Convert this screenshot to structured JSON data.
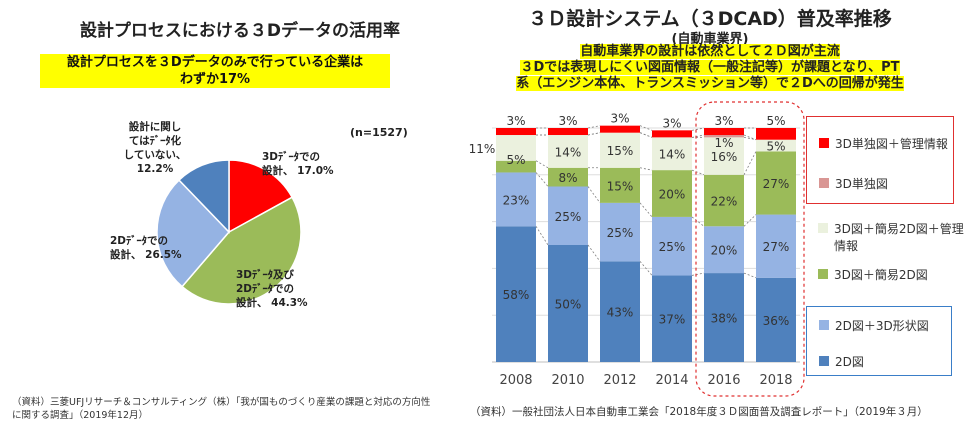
{
  "colors": {
    "d2": "#4f81bd",
    "d2shape": "#95b3e3",
    "d3simple": "#9bbb59",
    "d3simple_mgmt": "#ebf1de",
    "d3only": "#d99694",
    "d3only_mgmt": "#ff0000",
    "highlight": "#ffff00"
  },
  "left": {
    "title": "設計プロセスにおける３Dデータの活用率",
    "subtitle_line1": "設計プロセスを３Dデータのみで行っている企業は",
    "subtitle_line2": "わずか17%",
    "n_label": "(n=1527)",
    "source_line1": "（資料）三菱UFJリサーチ＆コンサルティング（株）「我が国ものづくり産業の課題と対応の方向性",
    "source_line2": "に関する調査」（2019年12月）"
  },
  "right": {
    "title": "３Ｄ設計システム（３DCAD）普及率推移",
    "subtitle0": "(自動車業界)",
    "line1": "自動車業界の設計は依然として２Ｄ図が主流",
    "line2": "３Dでは表現しにくい図面情報（一般注記等）が課題となり、PT",
    "line3": "系（エンジン本体、トランスミッション等）で２Dへの回帰が発生",
    "source": "（資料）一般社団法人日本自動車工業会「2018年度３Ｄ図面普及調査レポート」（2019年３月）"
  },
  "chart_data": [
    {
      "type": "pie",
      "title": "設計プロセスにおける３Dデータの活用率",
      "slices": [
        {
          "label_lines": [
            "3Dﾃﾞｰﾀでの",
            "設計、 17.0%"
          ],
          "value": 17.0,
          "color_key": "d3only_mgmt"
        },
        {
          "label_lines": [
            "3Dﾃﾞｰﾀ及び",
            "2Dﾃﾞｰﾀでの",
            "設計、 44.3%"
          ],
          "value": 44.3,
          "color_key": "d3simple"
        },
        {
          "label_lines": [
            "2Dﾃﾞｰﾀでの",
            "設計、 26.5%"
          ],
          "value": 26.5,
          "color_key": "d2shape"
        },
        {
          "label_lines": [
            "設計に関し",
            "てはﾃﾞｰﾀ化",
            "していない、",
            "12.2%"
          ],
          "value": 12.2,
          "color_key": "d2"
        }
      ]
    },
    {
      "type": "bar",
      "stacked": true,
      "title": "３Ｄ設計システム（３DCAD）普及率推移",
      "categories": [
        "2008",
        "2010",
        "2012",
        "2014",
        "2016",
        "2018"
      ],
      "highlight_categories": [
        "2016",
        "2018"
      ],
      "series": [
        {
          "name": "2D図",
          "values": [
            58,
            50,
            43,
            37,
            38,
            36
          ],
          "labels": [
            "58%",
            "50%",
            "43%",
            "37%",
            "38%",
            "36%"
          ],
          "color_key": "d2"
        },
        {
          "name": "2D図＋3D形状図",
          "values": [
            23,
            25,
            25,
            25,
            20,
            27
          ],
          "labels": [
            "23%",
            "25%",
            "25%",
            "25%",
            "20%",
            "27%"
          ],
          "color_key": "d2shape"
        },
        {
          "name": "3D図＋簡易2D図",
          "values": [
            5,
            8,
            15,
            20,
            22,
            27
          ],
          "labels": [
            "5%",
            "8%",
            "15%",
            "20%",
            "22%",
            "27%"
          ],
          "color_key": "d3simple"
        },
        {
          "name": "3D図＋簡易2D図＋管理情報",
          "values": [
            11,
            14,
            15,
            14,
            16,
            5
          ],
          "labels": [
            "11%",
            "14%",
            "15%",
            "14%",
            "16%",
            "5%"
          ],
          "color_key": "d3simple_mgmt"
        },
        {
          "name": "3D単独図",
          "values": [
            0,
            0,
            0,
            0,
            1,
            0
          ],
          "labels": [
            "",
            "",
            "",
            "",
            "1%",
            ""
          ],
          "color_key": "d3only"
        },
        {
          "name": "3D単独図＋管理情報",
          "values": [
            3,
            3,
            3,
            3,
            3,
            5
          ],
          "labels": [
            "3%",
            "3%",
            "3%",
            "3%",
            "3%",
            "5%"
          ],
          "color_key": "d3only_mgmt"
        }
      ],
      "legend_groups": [
        [
          "3D単独図＋管理情報",
          "3D単独図"
        ],
        [
          "3D図＋簡易2D図＋管理情報",
          "3D図＋簡易2D図"
        ],
        [
          "2D図＋3D形状図",
          "2D図"
        ]
      ]
    }
  ]
}
